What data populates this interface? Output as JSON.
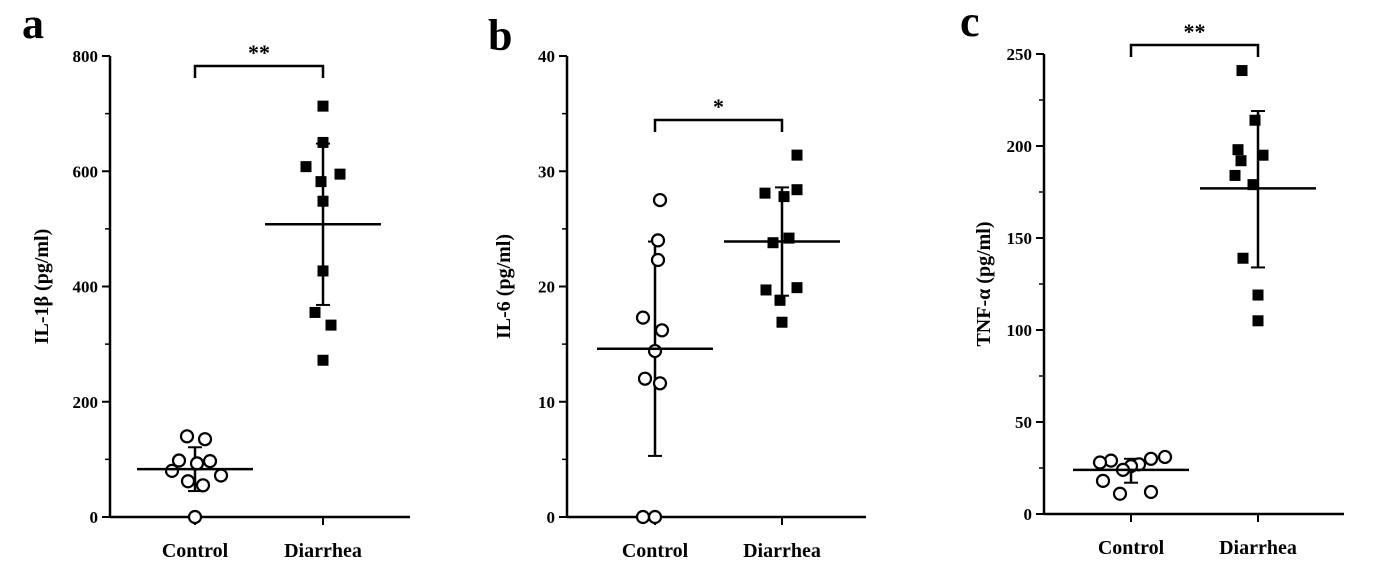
{
  "chart_data": [
    {
      "type": "scatter",
      "panel": "a",
      "ylabel": "IL-1β (pg/ml)",
      "ylim": [
        0,
        800
      ],
      "yticks": [
        0,
        200,
        400,
        600,
        800
      ],
      "categories": [
        "Control",
        "Diarrhea"
      ],
      "significance": "**",
      "series": [
        {
          "category": "Control",
          "marker": "open-circle",
          "values": [
            140,
            135,
            98,
            97,
            93,
            80,
            72,
            62,
            55,
            0
          ],
          "mean": 83,
          "error": [
            45,
            121
          ]
        },
        {
          "category": "Diarrhea",
          "marker": "filled-square",
          "values": [
            713,
            650,
            608,
            595,
            582,
            548,
            427,
            355,
            333,
            272
          ],
          "mean": 508,
          "error": [
            368,
            648
          ]
        }
      ]
    },
    {
      "type": "scatter",
      "panel": "b",
      "ylabel": "IL-6 (pg/ml)",
      "ylim": [
        0,
        40
      ],
      "yticks": [
        0,
        10,
        20,
        30,
        40
      ],
      "categories": [
        "Control",
        "Diarrhea"
      ],
      "significance": "*",
      "series": [
        {
          "category": "Control",
          "marker": "open-circle",
          "values": [
            27.5,
            24.0,
            22.3,
            17.3,
            16.2,
            14.4,
            12.0,
            11.6,
            0,
            0
          ],
          "mean": 14.6,
          "error": [
            5.3,
            23.9
          ]
        },
        {
          "category": "Diarrhea",
          "marker": "filled-square",
          "values": [
            31.4,
            28.4,
            28.1,
            27.8,
            24.2,
            23.8,
            19.9,
            19.7,
            18.8,
            16.9
          ],
          "mean": 23.9,
          "error": [
            19.2,
            28.6
          ]
        }
      ]
    },
    {
      "type": "scatter",
      "panel": "c",
      "ylabel": "TNF-α (pg/ml)",
      "ylim": [
        0,
        250
      ],
      "yticks": [
        0,
        50,
        100,
        150,
        200,
        250
      ],
      "categories": [
        "Control",
        "Diarrhea"
      ],
      "significance": "**",
      "series": [
        {
          "category": "Control",
          "marker": "open-circle",
          "values": [
            31,
            30,
            29,
            28,
            27,
            26,
            24,
            18,
            12,
            11
          ],
          "mean": 24,
          "error": [
            17,
            30
          ]
        },
        {
          "category": "Diarrhea",
          "marker": "filled-square",
          "values": [
            241,
            214,
            198,
            195,
            192,
            184,
            179,
            139,
            119,
            105
          ],
          "mean": 177,
          "error": [
            134,
            219
          ]
        }
      ]
    }
  ]
}
